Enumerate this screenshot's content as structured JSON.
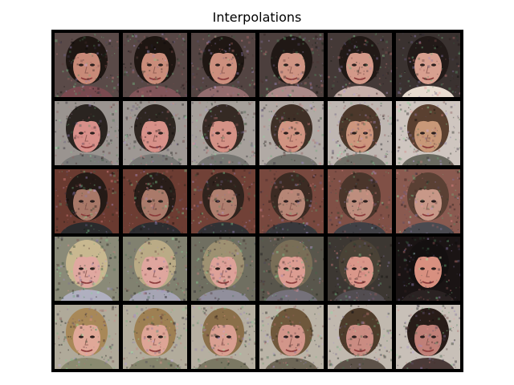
{
  "title": "Interpolations",
  "grid": {
    "rows": 5,
    "cols": 6,
    "border_color": "#000000",
    "rows_data": [
      {
        "name": "row-1",
        "bg": "#5a4a48",
        "hair": "#1e1612",
        "skin": "#c88a78",
        "shirt": "#7a4a50",
        "end_bg": "#3a3230",
        "end_hair": "#221a18",
        "end_skin": "#d8a090",
        "end_shirt": "#e8dcd0"
      },
      {
        "name": "row-2",
        "bg": "#9a9490",
        "hair": "#2a2420",
        "skin": "#d8908a",
        "shirt": "#7a7a78",
        "end_bg": "#cfc6c0",
        "end_hair": "#5a4030",
        "end_skin": "#c89878",
        "end_shirt": "#6a6a60"
      },
      {
        "name": "row-3",
        "bg": "#6a3a30",
        "hair": "#241a16",
        "skin": "#a87868",
        "shirt": "#2a2a2c",
        "end_bg": "#8a5a50",
        "end_hair": "#5a4034",
        "end_skin": "#c89888",
        "end_shirt": "#4a4a50"
      },
      {
        "name": "row-4",
        "bg": "#8a8a78",
        "hair": "#c8b890",
        "skin": "#e0a8a0",
        "shirt": "#b0b0c0",
        "end_bg": "#1a1414",
        "end_hair": "#141010",
        "end_skin": "#d89080",
        "end_shirt": "#2a2222"
      },
      {
        "name": "row-5",
        "bg": "#b0aa9a",
        "hair": "#a88858",
        "skin": "#e0a898",
        "shirt": "#8a8a70",
        "end_bg": "#c8c0b8",
        "end_hair": "#281c18",
        "end_skin": "#c08078",
        "end_shirt": "#4a3a38"
      }
    ]
  }
}
